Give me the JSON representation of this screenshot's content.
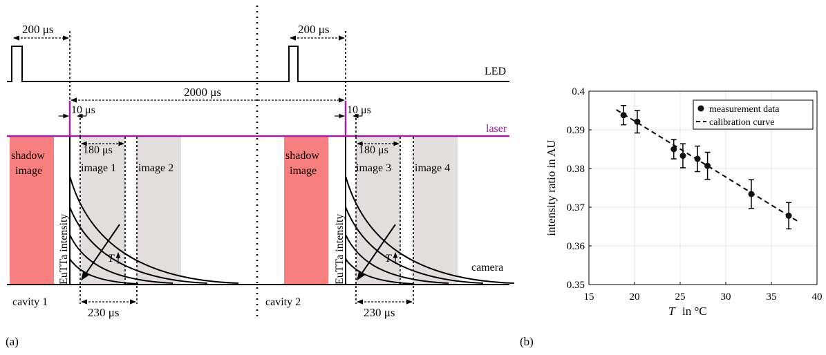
{
  "panel_a": {
    "label": "(a)",
    "led": {
      "label": "LED",
      "delay_left": "200 μs",
      "delay_right": "200 μs"
    },
    "period": "2000 μs",
    "laser": {
      "label": "laser",
      "pulse_left": "10 μs",
      "pulse_right": "10 μs",
      "color": "#a020a0"
    },
    "camera": {
      "label": "camera",
      "gap_left": "180 μs",
      "gap_right": "180 μs",
      "span_left": "230 μs",
      "span_right": "230 μs"
    },
    "windows": {
      "shadow_1": [
        "shadow",
        "image"
      ],
      "shadow_2": [
        "shadow",
        "image"
      ],
      "image_1": "image 1",
      "image_2": "image 2",
      "image_3": "image 3",
      "image_4": "image 4",
      "shadow_color": "#f77f7f",
      "image_color": "#e2dedd"
    },
    "intensity_label": "EuTTa intensity",
    "temp_arrow_label": "T",
    "cavity_1": "cavity 1",
    "cavity_2": "cavity 2"
  },
  "panel_b": {
    "label": "(b)",
    "legend": {
      "measurement": "measurement data",
      "calibration": "calibration curve"
    },
    "xlabel_var": "T",
    "xlabel_unit": "in °C",
    "ylabel": "intensity ratio in AU"
  },
  "chart_data": {
    "type": "scatter",
    "x_ticks": [
      "15",
      "20",
      "25",
      "30",
      "35",
      "40"
    ],
    "y_ticks": [
      "0.35",
      "0.36",
      "0.37",
      "0.38",
      "0.39",
      "0.4"
    ],
    "xlim": [
      15,
      40
    ],
    "ylim": [
      0.35,
      0.4
    ],
    "grid": true,
    "legend_position": "top-right",
    "series": [
      {
        "name": "measurement data",
        "x": [
          18.8,
          20.3,
          24.3,
          25.3,
          26.9,
          28.0,
          32.8,
          36.9
        ],
        "y": [
          0.3938,
          0.3921,
          0.385,
          0.3833,
          0.3825,
          0.3807,
          0.3734,
          0.3678
        ],
        "err": [
          0.0025,
          0.0029,
          0.0025,
          0.0031,
          0.0033,
          0.0035,
          0.0037,
          0.0034
        ]
      },
      {
        "name": "calibration curve",
        "x": [
          18.0,
          38.0
        ],
        "y": [
          0.3952,
          0.3662
        ]
      }
    ]
  }
}
